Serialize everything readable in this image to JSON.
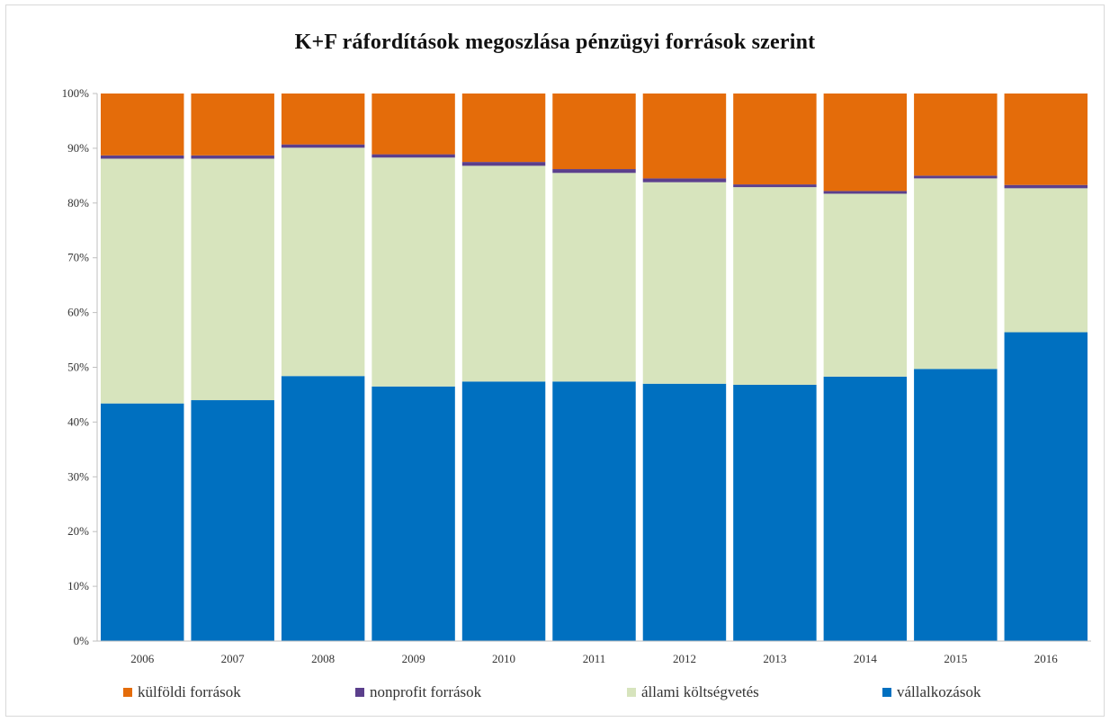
{
  "chart_data": {
    "type": "bar",
    "stacked": true,
    "title": "K+F ráfordítások megoszlása pénzügyi források szerint",
    "xlabel": "",
    "ylabel": "",
    "ylim": [
      0,
      100
    ],
    "y_ticks": [
      "0%",
      "10%",
      "20%",
      "30%",
      "40%",
      "50%",
      "60%",
      "70%",
      "80%",
      "90%",
      "100%"
    ],
    "categories": [
      "2006",
      "2007",
      "2008",
      "2009",
      "2010",
      "2011",
      "2012",
      "2013",
      "2014",
      "2015",
      "2016"
    ],
    "series": [
      {
        "name": "vállalkozások",
        "color": "#0070c0",
        "values": [
          43.4,
          44.0,
          48.4,
          46.5,
          47.4,
          47.4,
          47.0,
          46.8,
          48.3,
          49.7,
          56.4
        ]
      },
      {
        "name": "állami költségvetés",
        "color": "#d7e4bd",
        "values": [
          44.7,
          44.1,
          41.7,
          41.8,
          39.4,
          38.1,
          36.8,
          36.1,
          33.4,
          34.8,
          26.3
        ]
      },
      {
        "name": "nonprofit források",
        "color": "#5b3f8c",
        "values": [
          0.6,
          0.6,
          0.6,
          0.6,
          0.7,
          0.7,
          0.7,
          0.5,
          0.5,
          0.5,
          0.6
        ]
      },
      {
        "name": "külföldi források",
        "color": "#e46c0a",
        "values": [
          11.3,
          11.3,
          9.3,
          11.1,
          12.5,
          13.8,
          15.5,
          16.6,
          17.8,
          15.0,
          16.7
        ]
      }
    ],
    "grid": false,
    "legend_position": "bottom"
  },
  "legend": [
    {
      "label": "külföldi források",
      "color": "#e46c0a"
    },
    {
      "label": "nonprofit források",
      "color": "#5b3f8c"
    },
    {
      "label": "állami költségvetés",
      "color": "#d7e4bd"
    },
    {
      "label": "vállalkozások",
      "color": "#0070c0"
    }
  ]
}
